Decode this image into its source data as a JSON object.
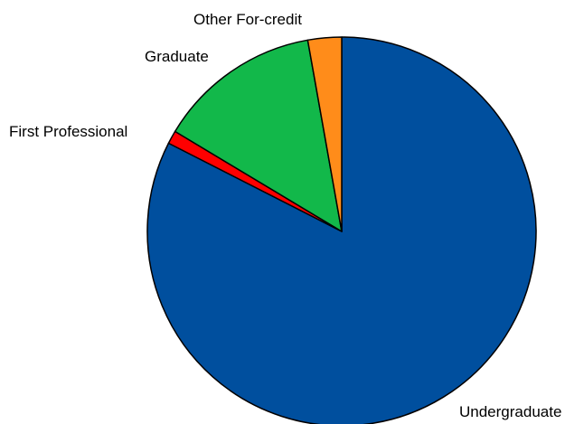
{
  "chart_data": {
    "type": "pie",
    "title": "",
    "start_angle": "12 o'clock",
    "direction": "clockwise",
    "legend": "none (slice labels placed next to slices)",
    "slices": [
      {
        "label": "Undergraduate",
        "value": 82.5,
        "color": "#004f9e"
      },
      {
        "label": "First Professional",
        "value": 1.1,
        "color": "#ff0000"
      },
      {
        "label": "Graduate",
        "value": 13.6,
        "color": "#12b84a"
      },
      {
        "label": "Other For-credit",
        "value": 2.8,
        "color": "#ff8c1a"
      }
    ]
  }
}
